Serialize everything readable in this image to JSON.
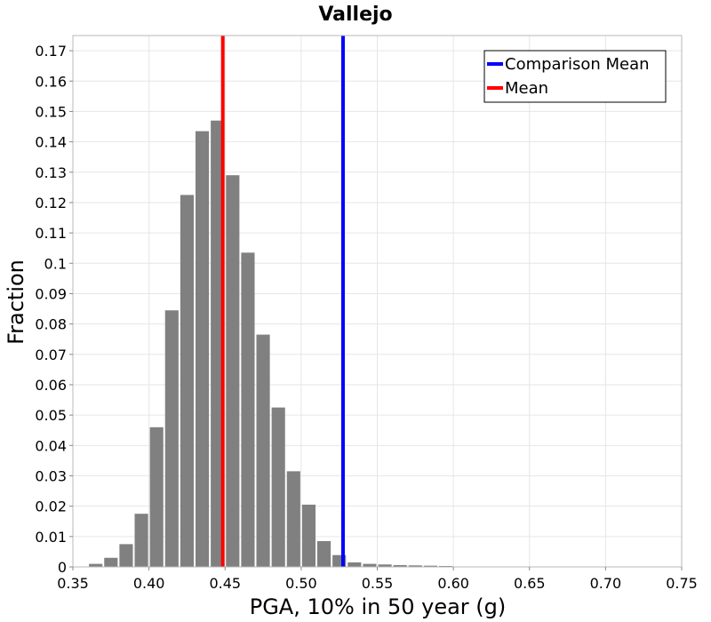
{
  "chart_data": {
    "type": "bar",
    "title": "Vallejo",
    "xlabel": "PGA, 10% in 50 year (g)",
    "ylabel": "Fraction",
    "xlim": [
      0.35,
      0.75
    ],
    "ylim": [
      0,
      0.175
    ],
    "x_ticks": [
      "0.35",
      "0.40",
      "0.45",
      "0.50",
      "0.55",
      "0.60",
      "0.65",
      "0.70",
      "0.75"
    ],
    "y_ticks": [
      "0",
      "0.01",
      "0.02",
      "0.03",
      "0.04",
      "0.05",
      "0.06",
      "0.07",
      "0.08",
      "0.09",
      "0.1",
      "0.11",
      "0.12",
      "0.13",
      "0.14",
      "0.15",
      "0.16",
      "0.17"
    ],
    "bin_width": 0.01,
    "bins": [
      {
        "x": 0.365,
        "value": 0.001
      },
      {
        "x": 0.375,
        "value": 0.003
      },
      {
        "x": 0.385,
        "value": 0.0075
      },
      {
        "x": 0.395,
        "value": 0.0175
      },
      {
        "x": 0.405,
        "value": 0.046
      },
      {
        "x": 0.415,
        "value": 0.0845
      },
      {
        "x": 0.425,
        "value": 0.1225
      },
      {
        "x": 0.435,
        "value": 0.1435
      },
      {
        "x": 0.445,
        "value": 0.147
      },
      {
        "x": 0.455,
        "value": 0.129
      },
      {
        "x": 0.465,
        "value": 0.1035
      },
      {
        "x": 0.475,
        "value": 0.0765
      },
      {
        "x": 0.485,
        "value": 0.0525
      },
      {
        "x": 0.495,
        "value": 0.0315
      },
      {
        "x": 0.505,
        "value": 0.0205
      },
      {
        "x": 0.515,
        "value": 0.0085
      },
      {
        "x": 0.525,
        "value": 0.0039
      },
      {
        "x": 0.535,
        "value": 0.0015
      },
      {
        "x": 0.545,
        "value": 0.001
      },
      {
        "x": 0.555,
        "value": 0.0008
      },
      {
        "x": 0.565,
        "value": 0.0006
      },
      {
        "x": 0.575,
        "value": 0.0005
      },
      {
        "x": 0.585,
        "value": 0.0004
      },
      {
        "x": 0.595,
        "value": 0.0003
      }
    ],
    "vertical_lines": [
      {
        "name": "Comparison Mean",
        "x": 0.5275,
        "color": "#0000ff"
      },
      {
        "name": "Mean",
        "x": 0.4485,
        "color": "#ff0000"
      }
    ],
    "grid": true,
    "legend_position": "top-right",
    "bar_color": "#808080",
    "grid_color": "#e6e6e6"
  }
}
